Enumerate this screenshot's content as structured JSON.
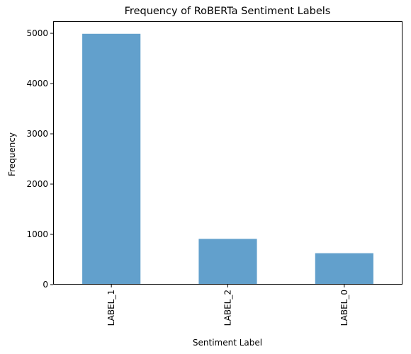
{
  "chart_data": {
    "type": "bar",
    "title": "Frequency of RoBERTa Sentiment Labels",
    "xlabel": "Sentiment Label",
    "ylabel": "Frequency",
    "categories": [
      "LABEL_1",
      "LABEL_2",
      "LABEL_0"
    ],
    "values": [
      4990,
      910,
      625
    ],
    "ylim": [
      0,
      5240
    ],
    "yticks": [
      0,
      1000,
      2000,
      3000,
      4000,
      5000
    ],
    "grid": false,
    "legend": "none",
    "bar_color": "#62a0cc",
    "x_tick_rotation": "vertical"
  }
}
